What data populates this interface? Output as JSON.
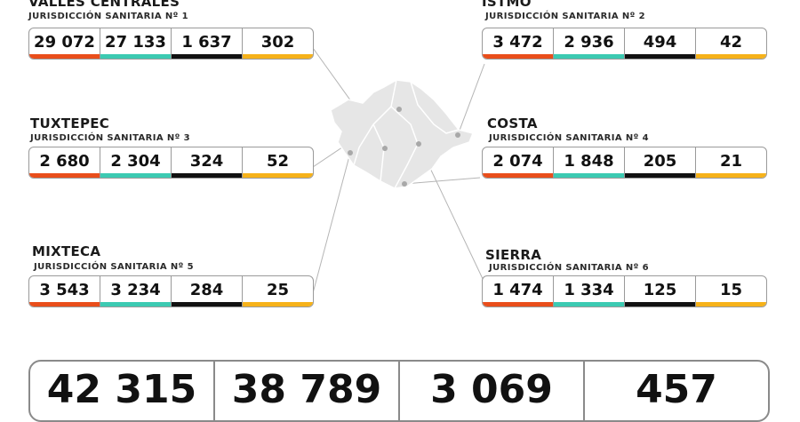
{
  "regions": [
    {
      "name": "VALLES CENTRALES",
      "sub": "JURISDICCIÓN SANITARIA Nº 1",
      "values": [
        "29 072",
        "27 133",
        "1 637",
        "302"
      ]
    },
    {
      "name": "ISTMO",
      "sub": "JURISDICCIÓN SANITARIA Nº 2",
      "values": [
        "3 472",
        "2 936",
        "494",
        "42"
      ]
    },
    {
      "name": "TUXTEPEC",
      "sub": "JURISDICCIÓN SANITARIA Nº 3",
      "values": [
        "2 680",
        "2 304",
        "324",
        "52"
      ]
    },
    {
      "name": "COSTA",
      "sub": "JURISDICCIÓN SANITARIA Nº 4",
      "values": [
        "2 074",
        "1 848",
        "205",
        "21"
      ]
    },
    {
      "name": "MIXTECA",
      "sub": "JURISDICCIÓN SANITARIA Nº 5",
      "values": [
        "3 543",
        "3 234",
        "284",
        "25"
      ]
    },
    {
      "name": "SIERRA",
      "sub": "JURISDICCIÓN SANITARIA Nº 6",
      "values": [
        "1 474",
        "1 334",
        "125",
        "15"
      ]
    }
  ],
  "totals": [
    "42 315",
    "38 789",
    "3 069",
    "457"
  ],
  "colors": {
    "bar_confirmed": "#e94e1b",
    "bar_recovered": "#3ccab2",
    "bar_deaths": "#111111",
    "bar_active": "#f6b21a"
  }
}
